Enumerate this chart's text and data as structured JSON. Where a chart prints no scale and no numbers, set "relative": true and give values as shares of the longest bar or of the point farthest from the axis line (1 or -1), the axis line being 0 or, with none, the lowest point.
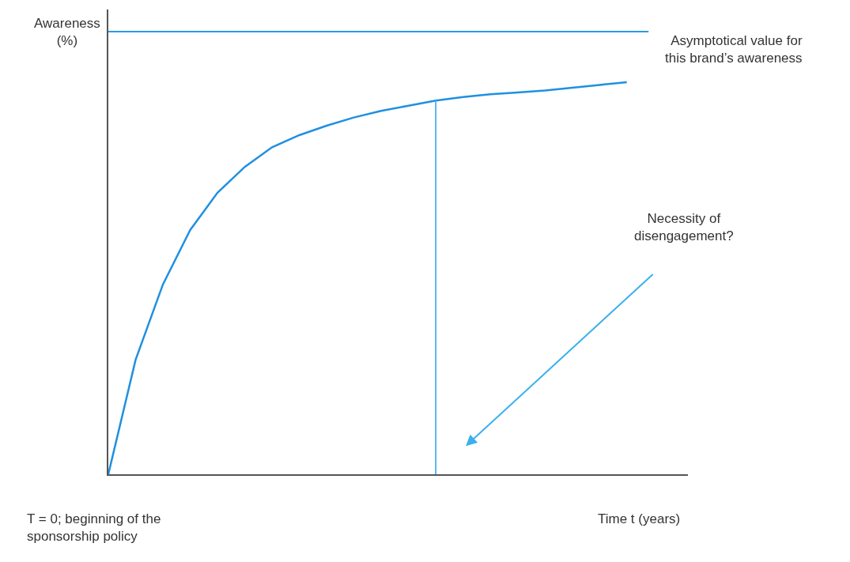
{
  "chart_data": {
    "type": "line",
    "relative": true,
    "marker": "none",
    "line_style": "solid",
    "xlabel": "Time t (years)",
    "ylabel": "Awareness (%)",
    "categories": [
      null,
      null,
      null,
      null,
      null,
      null,
      null,
      null,
      null,
      null,
      null,
      null,
      null,
      null,
      null,
      null,
      null,
      null,
      null,
      null
    ],
    "series": [
      {
        "color": "#2090e0",
        "values": [
          0,
          0.292,
          0.484,
          0.623,
          0.718,
          0.784,
          0.834,
          0.865,
          0.889,
          0.91,
          0.927,
          0.94,
          0.953,
          0.962,
          0.969,
          0.974,
          0.979,
          0.986,
          0.993,
          1
        ]
      }
    ],
    "ref_lines": [
      {
        "axis": "y",
        "value": 1.129,
        "label": "Asymptotical value for this brand’s awareness",
        "color": "#2a9ae6"
      }
    ],
    "annotations": [
      "T = 0; beginning of the sponsorship policy",
      "Necessity of disengagement?"
    ]
  }
}
